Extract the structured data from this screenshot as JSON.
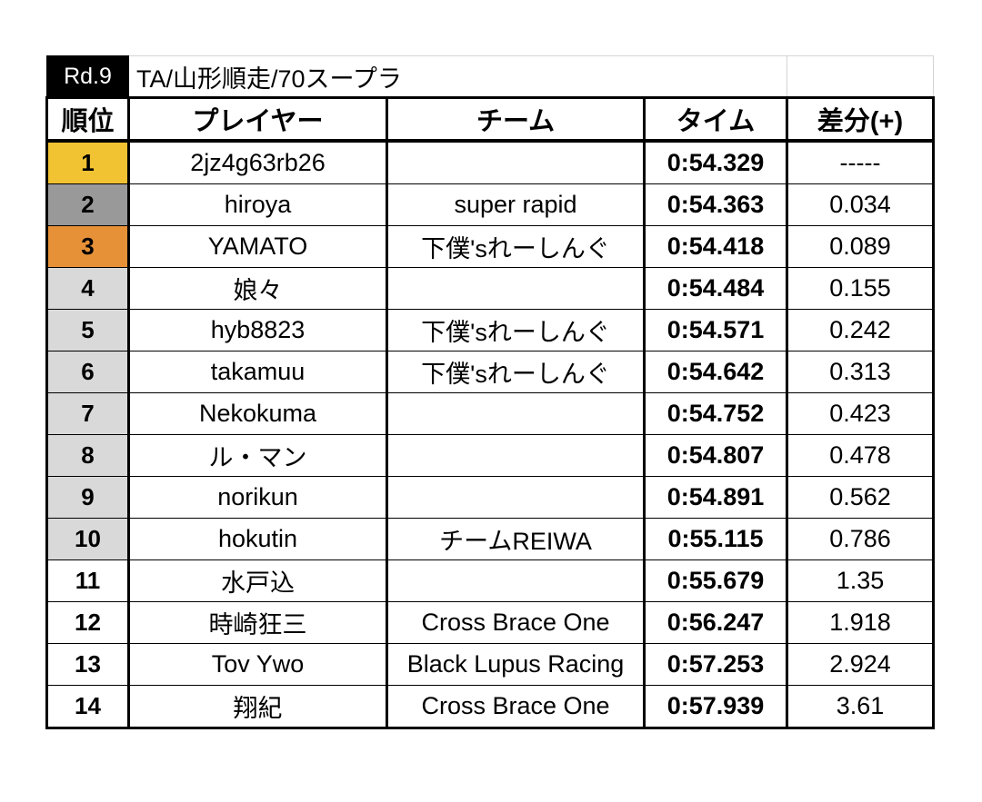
{
  "round": "Rd.9",
  "event_title": "TA/山形順走/70スープラ",
  "headers": {
    "rank": "順位",
    "player": "プレイヤー",
    "team": "チーム",
    "time": "タイム",
    "diff": "差分(+)"
  },
  "rank_colors": {
    "gold": "#f1c232",
    "silver": "#999999",
    "bronze": "#e69138",
    "grey": "#d9d9d9",
    "white": "#ffffff"
  },
  "rows": [
    {
      "rank": "1",
      "player": "2jz4g63rb26",
      "team": "",
      "time": "0:54.329",
      "diff": "-----",
      "color": "#f1c232"
    },
    {
      "rank": "2",
      "player": "hiroya",
      "team": "super rapid",
      "time": "0:54.363",
      "diff": "0.034",
      "color": "#999999"
    },
    {
      "rank": "3",
      "player": "YAMATO",
      "team": "下僕'sれーしんぐ",
      "time": "0:54.418",
      "diff": "0.089",
      "color": "#e69138"
    },
    {
      "rank": "4",
      "player": "娘々",
      "team": "",
      "time": "0:54.484",
      "diff": "0.155",
      "color": "#d9d9d9"
    },
    {
      "rank": "5",
      "player": "hyb8823",
      "team": "下僕'sれーしんぐ",
      "time": "0:54.571",
      "diff": "0.242",
      "color": "#d9d9d9"
    },
    {
      "rank": "6",
      "player": "takamuu",
      "team": "下僕'sれーしんぐ",
      "time": "0:54.642",
      "diff": "0.313",
      "color": "#d9d9d9"
    },
    {
      "rank": "7",
      "player": "Nekokuma",
      "team": "",
      "time": "0:54.752",
      "diff": "0.423",
      "color": "#d9d9d9"
    },
    {
      "rank": "8",
      "player": "ル・マン",
      "team": "",
      "time": "0:54.807",
      "diff": "0.478",
      "color": "#d9d9d9"
    },
    {
      "rank": "9",
      "player": "norikun",
      "team": "",
      "time": "0:54.891",
      "diff": "0.562",
      "color": "#d9d9d9"
    },
    {
      "rank": "10",
      "player": "hokutin",
      "team": "チームREIWA",
      "time": "0:55.115",
      "diff": "0.786",
      "color": "#d9d9d9"
    },
    {
      "rank": "11",
      "player": "水戸込",
      "team": "",
      "time": "0:55.679",
      "diff": "1.35",
      "color": "#ffffff"
    },
    {
      "rank": "12",
      "player": "時崎狂三",
      "team": "Cross Brace One",
      "time": "0:56.247",
      "diff": "1.918",
      "color": "#ffffff"
    },
    {
      "rank": "13",
      "player": "Tov Ywo",
      "team": "Black Lupus Racing",
      "time": "0:57.253",
      "diff": "2.924",
      "color": "#ffffff"
    },
    {
      "rank": "14",
      "player": "翔紀",
      "team": "Cross Brace One",
      "time": "0:57.939",
      "diff": "3.61",
      "color": "#ffffff"
    }
  ]
}
